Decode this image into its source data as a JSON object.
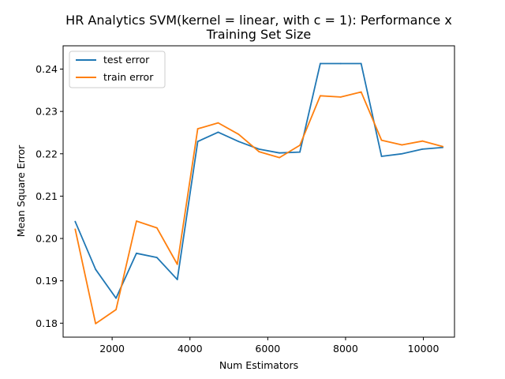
{
  "chart_data": {
    "type": "line",
    "title_lines": [
      "HR Analytics SVM(kernel = linear, with c = 1): Performance x",
      "Training Set Size"
    ],
    "xlabel": "Num Estimators",
    "ylabel": "Mean Square Error",
    "xlim": [
      740,
      10800
    ],
    "ylim": [
      0.1767,
      0.2455
    ],
    "x_ticks": [
      2000,
      4000,
      6000,
      8000,
      10000
    ],
    "x_tick_labels": [
      "2000",
      "4000",
      "6000",
      "8000",
      "10000"
    ],
    "y_ticks": [
      0.18,
      0.19,
      0.2,
      0.21,
      0.22,
      0.23,
      0.24
    ],
    "y_tick_labels": [
      "0.18",
      "0.19",
      "0.20",
      "0.21",
      "0.22",
      "0.23",
      "0.24"
    ],
    "grid": false,
    "legend_position": "upper-left",
    "x": [
      1050,
      1575,
      2100,
      2625,
      3150,
      3675,
      4200,
      4725,
      5250,
      5775,
      6300,
      6825,
      7350,
      7875,
      8400,
      8925,
      9450,
      9975,
      10500
    ],
    "series": [
      {
        "name": "test error",
        "color": "#1f77b4",
        "values": [
          0.204,
          0.1927,
          0.1859,
          0.1965,
          0.1955,
          0.1903,
          0.2229,
          0.2251,
          0.2229,
          0.2211,
          0.2202,
          0.2204,
          0.2413,
          0.2413,
          0.2413,
          0.2194,
          0.22,
          0.2211,
          0.2215
        ]
      },
      {
        "name": "train error",
        "color": "#ff7f0e",
        "values": [
          0.2022,
          0.1799,
          0.1832,
          0.2041,
          0.2025,
          0.1939,
          0.2259,
          0.2273,
          0.2246,
          0.2205,
          0.2191,
          0.222,
          0.2337,
          0.2334,
          0.2346,
          0.2232,
          0.2221,
          0.223,
          0.2217
        ]
      }
    ]
  }
}
